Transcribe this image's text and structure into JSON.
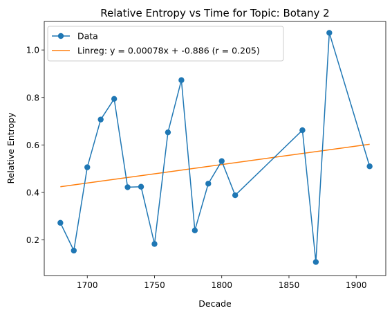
{
  "chart_data": {
    "type": "line",
    "title": "Relative Entropy vs Time for Topic: Botany 2",
    "xlabel": "Decade",
    "ylabel": "Relative Entropy",
    "xlim": [
      1668,
      1922
    ],
    "ylim": [
      0.05,
      1.12
    ],
    "x_ticks": [
      1700,
      1750,
      1800,
      1850,
      1900
    ],
    "y_ticks": [
      0.2,
      0.4,
      0.6,
      0.8,
      1.0
    ],
    "x_tick_labels": [
      "1700",
      "1750",
      "1800",
      "1850",
      "1900"
    ],
    "y_tick_labels": [
      "0.2",
      "0.4",
      "0.6",
      "0.8",
      "1.0"
    ],
    "grid": false,
    "legend_position": "top-left",
    "series": [
      {
        "name": "Data",
        "color": "#1f77b4",
        "marker": "circle",
        "x": [
          1680,
          1690,
          1700,
          1710,
          1720,
          1730,
          1740,
          1750,
          1760,
          1770,
          1780,
          1790,
          1800,
          1810,
          1860,
          1870,
          1880,
          1910
        ],
        "y": [
          0.272,
          0.155,
          0.506,
          0.707,
          0.794,
          0.422,
          0.424,
          0.183,
          0.653,
          0.873,
          0.24,
          0.437,
          0.532,
          0.388,
          0.662,
          0.107,
          1.072,
          0.51
        ]
      },
      {
        "name": "Linreg: y = 0.00078x + -0.886 (r = 0.205)",
        "color": "#ff7f0e",
        "marker": "none",
        "x": [
          1680,
          1910
        ],
        "y": [
          0.424,
          0.603
        ]
      }
    ]
  }
}
